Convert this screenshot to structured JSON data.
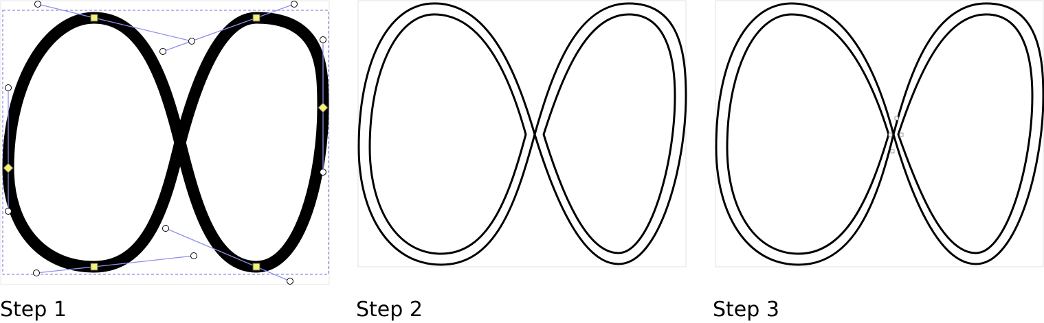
{
  "steps": [
    {
      "caption": "Step 1"
    },
    {
      "caption": "Step 2"
    },
    {
      "caption": "Step 3"
    }
  ],
  "colors": {
    "stroke": "#000000",
    "handle_line": "#8f8fef",
    "node_fill": "#f5f07a",
    "bbox_dash": "#6f6fd8",
    "frame": "#e0e0e0"
  }
}
